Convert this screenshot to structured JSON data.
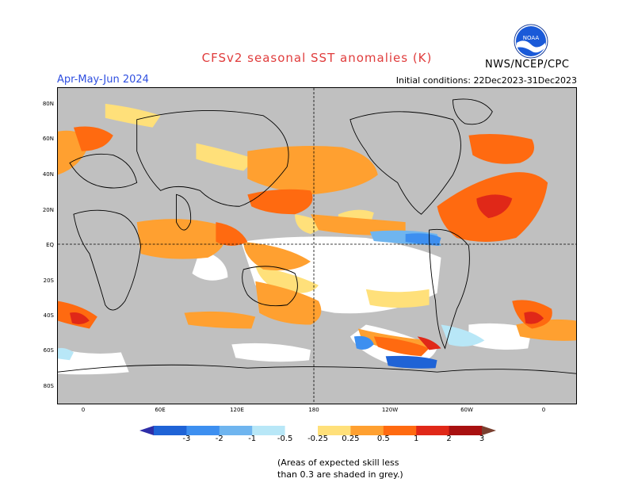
{
  "title": "CFSv2 seasonal SST anomalies (K)",
  "season": "Apr-May-Jun 2024",
  "initial_conditions": "Initial conditions: 22Dec2023-31Dec2023",
  "agency": "NWS/NCEP/CPC",
  "logo_text": "NOAA",
  "lat_labels": [
    "80N",
    "60N",
    "40N",
    "20N",
    "EQ",
    "20S",
    "40S",
    "60S",
    "80S"
  ],
  "lon_labels": [
    "0",
    "60E",
    "120E",
    "180",
    "120W",
    "60W",
    "0"
  ],
  "colorbar": {
    "labels": [
      "-3",
      "-2",
      "-1",
      "-0.5",
      "-0.25",
      "0.25",
      "0.5",
      "1",
      "2",
      "3"
    ],
    "colors": [
      "#2e2ea8",
      "#1f63d6",
      "#3d8ff0",
      "#6fb5ef",
      "#b8e7f7",
      "#ffffff",
      "#ffe07a",
      "#ffa030",
      "#ff6a10",
      "#e02818",
      "#a81010",
      "#7a4030"
    ]
  },
  "note_line1": "(Areas of expected skill less",
  "note_line2": "than 0.3 are shaded in grey.)",
  "colors": {
    "land": "#c0c0c0",
    "title": "#e03c3c",
    "season": "#2f4fe0"
  }
}
